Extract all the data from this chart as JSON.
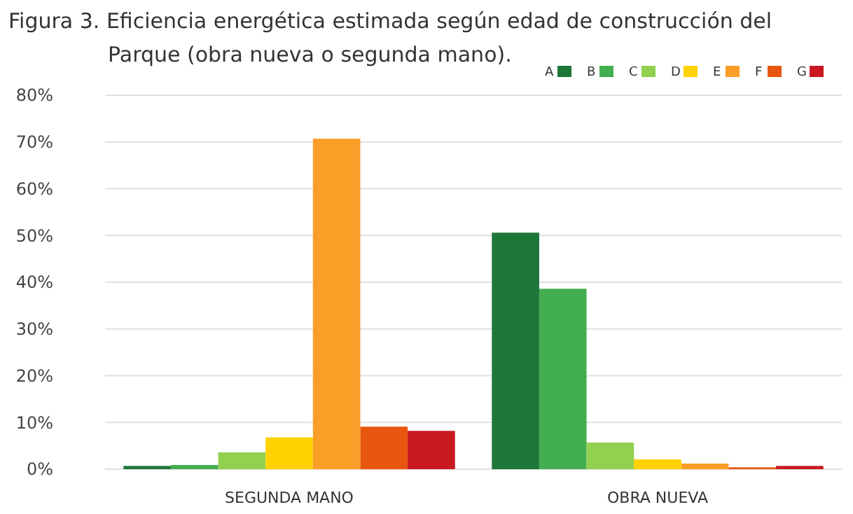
{
  "chart_data": {
    "type": "bar",
    "title": "Figura 3. Eficiencia energética estimada según edad de construcción del Parque (obra nueva o segunda mano).",
    "categories": [
      "SEGUNDA MANO",
      "OBRA NUEVA"
    ],
    "series": [
      {
        "name": "A",
        "color": "#1e7639",
        "values": [
          0.7,
          50.6
        ]
      },
      {
        "name": "B",
        "color": "#43ae50",
        "values": [
          0.9,
          38.6
        ]
      },
      {
        "name": "C",
        "color": "#92d050",
        "values": [
          3.6,
          5.7
        ]
      },
      {
        "name": "D",
        "color": "#ffd200",
        "values": [
          6.8,
          2.1
        ]
      },
      {
        "name": "E",
        "color": "#fa9e28",
        "values": [
          70.7,
          1.2
        ]
      },
      {
        "name": "F",
        "color": "#e8560f",
        "values": [
          9.1,
          0.4
        ]
      },
      {
        "name": "G",
        "color": "#c81820",
        "values": [
          8.2,
          0.7
        ]
      }
    ],
    "ylim": [
      0,
      80
    ],
    "yticks": [
      {
        "value": 0,
        "label": "0%"
      },
      {
        "value": 10,
        "label": "10%"
      },
      {
        "value": 20,
        "label": "20%"
      },
      {
        "value": 30,
        "label": "30%"
      },
      {
        "value": 40,
        "label": "40%"
      },
      {
        "value": 50,
        "label": "50%"
      },
      {
        "value": 60,
        "label": "60%"
      },
      {
        "value": 70,
        "label": "70%"
      },
      {
        "value": 80,
        "label": "80%"
      }
    ],
    "grid": "y",
    "legend": "top right"
  }
}
